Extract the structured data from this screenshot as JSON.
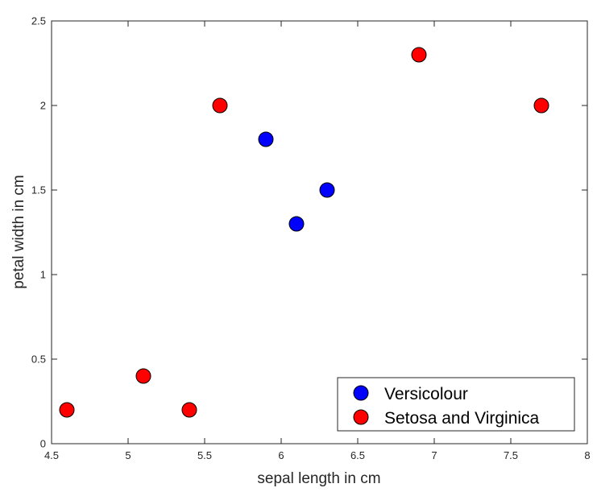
{
  "chart_data": {
    "type": "scatter",
    "xlabel": "sepal length in cm",
    "ylabel": "petal width in cm",
    "xlim": [
      4.5,
      8
    ],
    "ylim": [
      0,
      2.5
    ],
    "xticks": [
      4.5,
      5,
      5.5,
      6,
      6.5,
      7,
      7.5,
      8
    ],
    "yticks": [
      0,
      0.5,
      1,
      1.5,
      2,
      2.5
    ],
    "xtick_labels": [
      "4.5",
      "5",
      "5.5",
      "6",
      "6.5",
      "7",
      "7.5",
      "8"
    ],
    "ytick_labels": [
      "0",
      "0.5",
      "1",
      "1.5",
      "2",
      "2.5"
    ],
    "grid": false,
    "legend_position": "bottom-right",
    "series": [
      {
        "name": "Versicolour",
        "color": "#0000ff",
        "points": [
          {
            "x": 5.9,
            "y": 1.8
          },
          {
            "x": 6.1,
            "y": 1.3
          },
          {
            "x": 6.3,
            "y": 1.5
          }
        ]
      },
      {
        "name": "Setosa and Virginica",
        "color": "#ff0000",
        "points": [
          {
            "x": 4.6,
            "y": 0.2
          },
          {
            "x": 5.1,
            "y": 0.4
          },
          {
            "x": 5.4,
            "y": 0.2
          },
          {
            "x": 5.6,
            "y": 2.0
          },
          {
            "x": 6.9,
            "y": 2.3
          },
          {
            "x": 7.7,
            "y": 2.0
          }
        ]
      }
    ]
  }
}
